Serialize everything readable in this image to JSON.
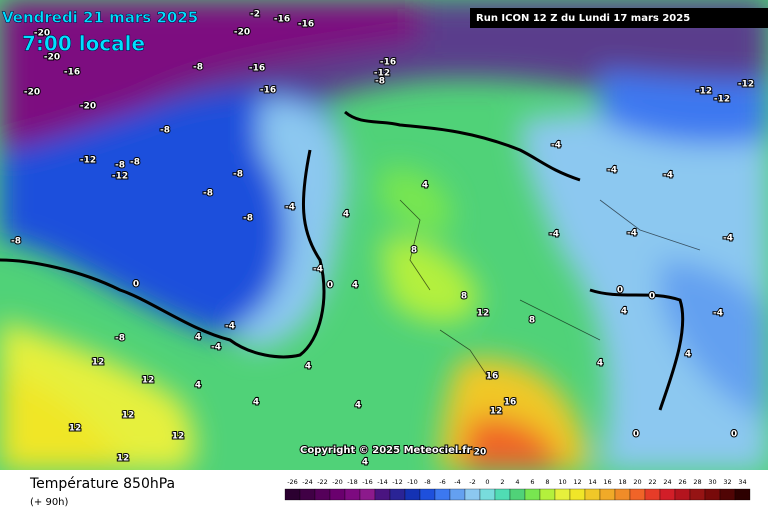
{
  "header": {
    "date": "Vendredi 21 mars 2025",
    "time": "7:00 locale",
    "run": "Run ICON 12 Z du Lundi 17 mars 2025",
    "copyright": "Copyright © 2025 Meteociel.fr"
  },
  "footer": {
    "parameter": "Température 850hPa",
    "lead": "(+ 90h)"
  },
  "scale": {
    "values": [
      -26,
      -24,
      -22,
      -20,
      -18,
      -16,
      -14,
      -12,
      -10,
      -8,
      -6,
      -4,
      -2,
      0,
      2,
      4,
      6,
      8,
      10,
      12,
      14,
      16,
      18,
      20,
      22,
      24,
      26,
      28,
      30,
      32,
      34
    ],
    "colors": [
      "#2b0030",
      "#400045",
      "#55005a",
      "#6a006e",
      "#7d0a80",
      "#8c1a8c",
      "#4a1480",
      "#2a2496",
      "#1432b4",
      "#1e50dc",
      "#3c78f0",
      "#64a0f0",
      "#8cc8f0",
      "#78dcdc",
      "#50dcb4",
      "#50d278",
      "#78e650",
      "#b4f03c",
      "#e6f03c",
      "#f0e628",
      "#f0c828",
      "#f0aa28",
      "#f08c28",
      "#f06428",
      "#e63c28",
      "#d21e28",
      "#b4141e",
      "#961414",
      "#780a0a",
      "#500505",
      "#2d0000"
    ]
  },
  "contour_labels": [
    -20,
    -16,
    -16,
    -2,
    -20,
    -20,
    -16,
    -20,
    -20,
    -8,
    -16,
    -16,
    -16,
    -12,
    -8,
    -8,
    -12,
    -12,
    -8,
    -8,
    -8,
    -8,
    -8,
    -4,
    -4,
    0,
    4,
    4,
    4,
    -4,
    -4,
    4,
    0,
    -8,
    -8,
    12,
    12,
    12,
    12,
    12,
    12,
    4,
    4,
    4,
    4,
    4,
    8,
    8,
    12,
    8,
    16,
    16,
    12,
    20,
    -4,
    -4,
    -4,
    -4,
    -4,
    4,
    -12,
    -12,
    -12,
    0,
    0,
    0,
    0,
    4,
    4,
    -4,
    -4
  ]
}
